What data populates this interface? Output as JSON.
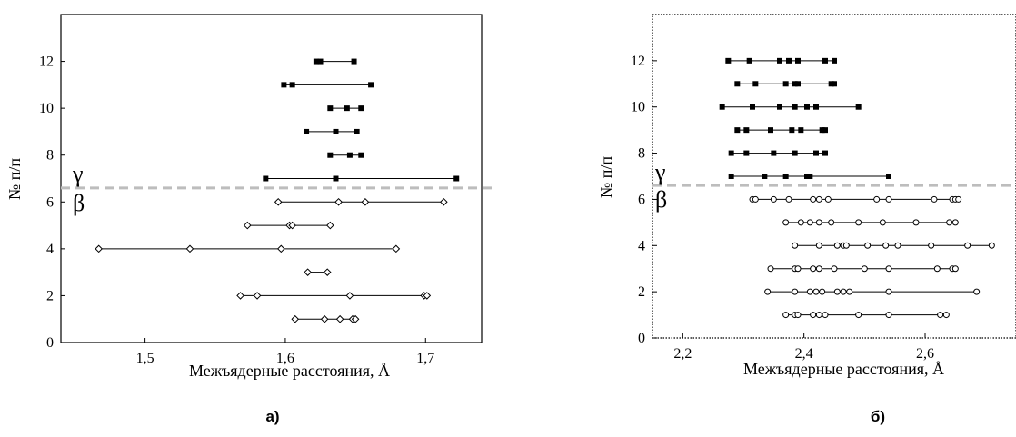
{
  "chart_data": [
    {
      "type": "range",
      "caption": "а)",
      "xlabel": "Межъядерные расстояния, Å",
      "ylabel": "№ п/п",
      "xlim": [
        1.44,
        1.74
      ],
      "ylim": [
        0,
        14
      ],
      "x_ticks": [
        1.5,
        1.6,
        1.7
      ],
      "x_tick_labels": [
        "1,5",
        "1,6",
        "1,7"
      ],
      "y_ticks": [
        0,
        2,
        4,
        6,
        8,
        10,
        12
      ],
      "y_tick_labels": [
        "0",
        "2",
        "4",
        "6",
        "8",
        "10",
        "12"
      ],
      "divider_y": 6.6,
      "upper_label": "γ",
      "lower_label": "β",
      "marker_style": "diamond",
      "grid": false,
      "series": [
        {
          "group": "γ",
          "marker": "filled-square",
          "rows": [
            {
              "y": 12,
              "x": [
                1.622,
                1.625,
                1.649
              ]
            },
            {
              "y": 11,
              "x": [
                1.599,
                1.605,
                1.661
              ]
            },
            {
              "y": 10,
              "x": [
                1.632,
                1.644,
                1.654
              ]
            },
            {
              "y": 9,
              "x": [
                1.615,
                1.636,
                1.651
              ]
            },
            {
              "y": 8,
              "x": [
                1.632,
                1.646,
                1.654
              ]
            },
            {
              "y": 7,
              "x": [
                1.586,
                1.636,
                1.722
              ]
            }
          ]
        },
        {
          "group": "β",
          "marker": "open-diamond",
          "rows": [
            {
              "y": 6,
              "x": [
                1.595,
                1.638,
                1.657,
                1.713
              ]
            },
            {
              "y": 5,
              "x": [
                1.573,
                1.603,
                1.605,
                1.632
              ]
            },
            {
              "y": 4,
              "x": [
                1.467,
                1.532,
                1.597,
                1.679
              ]
            },
            {
              "y": 3,
              "x": [
                1.616,
                1.63
              ]
            },
            {
              "y": 2,
              "x": [
                1.568,
                1.58,
                1.646,
                1.699,
                1.701
              ]
            },
            {
              "y": 1,
              "x": [
                1.607,
                1.628,
                1.639,
                1.648,
                1.65
              ]
            }
          ]
        }
      ]
    },
    {
      "type": "range",
      "caption": "б)",
      "xlabel": "Межъядерные расстояния, Å",
      "ylabel": "№ п/п",
      "xlim": [
        2.15,
        2.75
      ],
      "ylim": [
        0,
        14
      ],
      "x_ticks": [
        2.2,
        2.4,
        2.6
      ],
      "x_tick_labels": [
        "2,2",
        "2,4",
        "2,6"
      ],
      "y_ticks": [
        0,
        2,
        4,
        6,
        8,
        10,
        12
      ],
      "y_tick_labels": [
        "0",
        "2",
        "4",
        "6",
        "8",
        "10",
        "12"
      ],
      "divider_y": 6.6,
      "upper_label": "γ",
      "lower_label": "β",
      "grid": false,
      "series": [
        {
          "group": "γ",
          "marker": "filled-square",
          "rows": [
            {
              "y": 12,
              "x": [
                2.275,
                2.31,
                2.36,
                2.375,
                2.39,
                2.435,
                2.45
              ]
            },
            {
              "y": 11,
              "x": [
                2.29,
                2.32,
                2.37,
                2.39,
                2.385,
                2.445,
                2.45
              ]
            },
            {
              "y": 10,
              "x": [
                2.265,
                2.315,
                2.36,
                2.385,
                2.405,
                2.42,
                2.49
              ]
            },
            {
              "y": 9,
              "x": [
                2.29,
                2.305,
                2.345,
                2.38,
                2.395,
                2.43,
                2.435
              ]
            },
            {
              "y": 8,
              "x": [
                2.28,
                2.305,
                2.35,
                2.385,
                2.42,
                2.435
              ]
            },
            {
              "y": 7,
              "x": [
                2.28,
                2.335,
                2.37,
                2.405,
                2.41,
                2.54
              ]
            }
          ]
        },
        {
          "group": "β",
          "marker": "open-circle",
          "rows": [
            {
              "y": 6,
              "x": [
                2.315,
                2.32,
                2.35,
                2.375,
                2.415,
                2.425,
                2.44,
                2.52,
                2.54,
                2.615,
                2.645,
                2.65,
                2.655
              ]
            },
            {
              "y": 5,
              "x": [
                2.37,
                2.395,
                2.41,
                2.425,
                2.445,
                2.49,
                2.53,
                2.585,
                2.64,
                2.65
              ]
            },
            {
              "y": 4,
              "x": [
                2.385,
                2.425,
                2.455,
                2.465,
                2.47,
                2.505,
                2.535,
                2.555,
                2.61,
                2.67,
                2.71
              ]
            },
            {
              "y": 3,
              "x": [
                2.345,
                2.385,
                2.39,
                2.415,
                2.425,
                2.45,
                2.5,
                2.54,
                2.62,
                2.645,
                2.65
              ]
            },
            {
              "y": 2,
              "x": [
                2.34,
                2.385,
                2.41,
                2.42,
                2.43,
                2.455,
                2.465,
                2.475,
                2.54,
                2.685
              ]
            },
            {
              "y": 1,
              "x": [
                2.37,
                2.385,
                2.39,
                2.415,
                2.425,
                2.435,
                2.49,
                2.54,
                2.625,
                2.635
              ]
            }
          ]
        }
      ]
    }
  ]
}
